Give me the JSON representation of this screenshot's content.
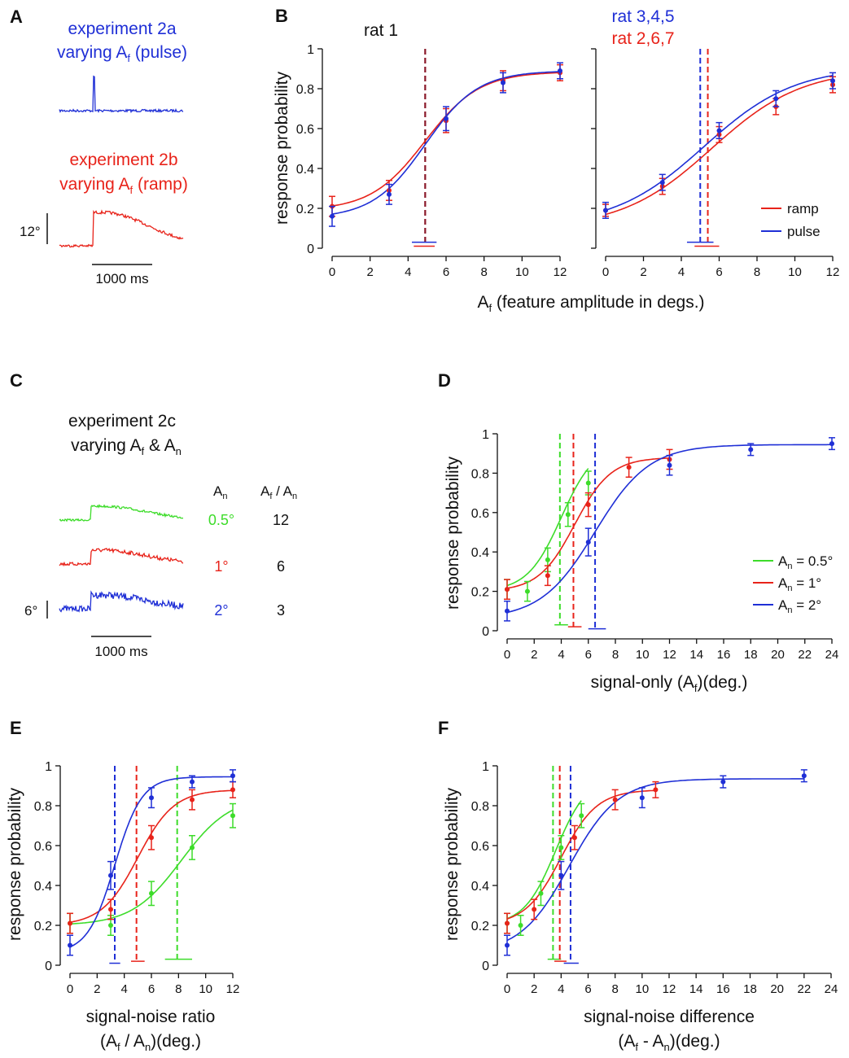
{
  "colors": {
    "blue": "#1f2fd6",
    "red": "#e8231a",
    "green": "#3ddc2a",
    "lightgreen": "#9be88d",
    "darkred": "#8b1a2a",
    "black": "#111111"
  },
  "panels": {
    "A": {
      "letter": "A",
      "pulse_title_1": "experiment 2a",
      "pulse_title_2_pre": "varying A",
      "pulse_title_2_sub": "f",
      "pulse_title_2_post": " (pulse)",
      "ramp_title_1": "experiment 2b",
      "ramp_title_2_pre": "varying A",
      "ramp_title_2_sub": "f",
      "ramp_title_2_post": " (ramp)",
      "scale_angle": "12°",
      "scale_time": "1000 ms"
    },
    "C": {
      "letter": "C",
      "title_1": "experiment 2c",
      "title_2_pre": "varying A",
      "title_2_sub1": "f",
      "title_2_mid": " & A",
      "title_2_sub2": "n",
      "col1_head": "A",
      "col1_head_sub": "n",
      "col2_head_pre": "A",
      "col2_head_sub1": "f",
      "col2_head_mid": " / A",
      "col2_head_sub2": "n",
      "rows": [
        {
          "an": "0.5°",
          "ratio": "12",
          "color": "#3ddc2a"
        },
        {
          "an": "1°",
          "ratio": "6",
          "color": "#e8231a"
        },
        {
          "an": "2°",
          "ratio": "3",
          "color": "#1f2fd6"
        }
      ],
      "scale_angle": "6°",
      "scale_time": "1000 ms"
    }
  },
  "chart_data": [
    {
      "id": "B-left",
      "letter": "B",
      "type": "line",
      "title": "rat 1",
      "ylabel": "response probability",
      "xlabel": "A",
      "xlabel_sub": "f",
      "xlabel_post": " (feature amplitude in degs.)",
      "xlim": [
        0,
        12
      ],
      "ylim": [
        0,
        1
      ],
      "xticks": [
        0,
        2,
        4,
        6,
        8,
        10,
        12
      ],
      "yticks": [
        0,
        0.2,
        0.4,
        0.6,
        0.8,
        1
      ],
      "ytick_labels": [
        "0",
        "0.2",
        "0.4",
        "0.6",
        "0.8",
        "1"
      ],
      "series": [
        {
          "name": "ramp",
          "color": "#e8231a",
          "x": [
            0,
            3,
            6,
            9,
            12
          ],
          "y": [
            0.21,
            0.29,
            0.64,
            0.84,
            0.88
          ],
          "err": [
            0.05,
            0.05,
            0.06,
            0.05,
            0.04
          ],
          "fit": {
            "x0": 4.9,
            "k": 0.7,
            "ymin": 0.19,
            "ymax": 0.885
          },
          "threshold": 4.9,
          "ci": [
            4.3,
            5.4
          ],
          "ci_y": 0.01
        },
        {
          "name": "pulse",
          "color": "#1f2fd6",
          "x": [
            0,
            3,
            6,
            9,
            12
          ],
          "y": [
            0.16,
            0.27,
            0.65,
            0.83,
            0.89
          ],
          "err": [
            0.05,
            0.05,
            0.06,
            0.05,
            0.04
          ],
          "fit": {
            "x0": 4.9,
            "k": 0.72,
            "ymin": 0.15,
            "ymax": 0.89
          },
          "threshold": 4.9,
          "ci": [
            4.2,
            5.5
          ],
          "ci_y": 0.03
        }
      ],
      "threshold_color": "#8b1a2a"
    },
    {
      "id": "B-right",
      "letter": "",
      "type": "line",
      "title_blue": "rat 3,4,5",
      "title_red": "rat 2,6,7",
      "xlim": [
        0,
        12
      ],
      "ylim": [
        0,
        1
      ],
      "xticks": [
        0,
        2,
        4,
        6,
        8,
        10,
        12
      ],
      "legend": [
        {
          "name": "ramp",
          "color": "#e8231a"
        },
        {
          "name": "pulse",
          "color": "#1f2fd6"
        }
      ],
      "legend_loc": "lower-right",
      "series": [
        {
          "name": "ramp",
          "color": "#e8231a",
          "x": [
            0,
            3,
            6,
            9,
            12
          ],
          "y": [
            0.19,
            0.31,
            0.57,
            0.71,
            0.82
          ],
          "err": [
            0.03,
            0.04,
            0.04,
            0.04,
            0.04
          ],
          "fit": {
            "x0": 5.6,
            "k": 0.42,
            "ymin": 0.1,
            "ymax": 0.9
          },
          "threshold": 5.4,
          "ci": [
            4.7,
            6.0
          ],
          "ci_y": 0.01
        },
        {
          "name": "pulse",
          "color": "#1f2fd6",
          "x": [
            0,
            3,
            6,
            9,
            12
          ],
          "y": [
            0.19,
            0.33,
            0.59,
            0.75,
            0.84
          ],
          "err": [
            0.04,
            0.04,
            0.04,
            0.04,
            0.04
          ],
          "fit": {
            "x0": 5.2,
            "k": 0.42,
            "ymin": 0.11,
            "ymax": 0.91
          },
          "threshold": 5.0,
          "ci": [
            4.3,
            5.7
          ],
          "ci_y": 0.03
        }
      ]
    },
    {
      "id": "D",
      "letter": "D",
      "type": "line",
      "ylabel": "response probability",
      "xlabel_pre": "signal-only (A",
      "xlabel_sub": "f",
      "xlabel_post": ")(deg.)",
      "xlim": [
        0,
        24
      ],
      "ylim": [
        0,
        1
      ],
      "xticks": [
        0,
        2,
        4,
        6,
        8,
        10,
        12,
        14,
        16,
        18,
        20,
        22,
        24
      ],
      "yticks": [
        0,
        0.2,
        0.4,
        0.6,
        0.8,
        1
      ],
      "ytick_labels": [
        "0",
        "0.2",
        "0.4",
        "0.6",
        "0.8",
        "1"
      ],
      "legend": [
        {
          "pre": "A",
          "sub": "n",
          "post": " = 0.5°",
          "color": "#3ddc2a"
        },
        {
          "pre": "A",
          "sub": "n",
          "post": " = 1°",
          "color": "#e8231a"
        },
        {
          "pre": "A",
          "sub": "n",
          "post": " = 2°",
          "color": "#1f2fd6"
        }
      ],
      "series": [
        {
          "name": "An = 0.5°",
          "color": "#3ddc2a",
          "x": [
            0,
            1.5,
            3,
            4.5,
            6
          ],
          "y": [
            0.21,
            0.2,
            0.36,
            0.59,
            0.75
          ],
          "err": [
            0.05,
            0.05,
            0.06,
            0.06,
            0.06
          ],
          "fit": {
            "x0": 4.0,
            "k": 0.8,
            "ymin": 0.2,
            "ymax": 0.95
          },
          "fit_range": [
            0,
            6
          ],
          "threshold": 3.9,
          "ci": [
            3.5,
            4.5
          ],
          "ci_y": 0.03
        },
        {
          "name": "An = 1°",
          "color": "#e8231a",
          "x": [
            0,
            3,
            6,
            9,
            12
          ],
          "y": [
            0.21,
            0.28,
            0.64,
            0.83,
            0.87
          ],
          "err": [
            0.05,
            0.05,
            0.06,
            0.05,
            0.05
          ],
          "fit": {
            "x0": 5.0,
            "k": 0.75,
            "ymin": 0.2,
            "ymax": 0.88
          },
          "fit_range": [
            0,
            12
          ],
          "threshold": 4.9,
          "ci": [
            4.5,
            5.5
          ],
          "ci_y": 0.02
        },
        {
          "name": "An = 2°",
          "color": "#1f2fd6",
          "x": [
            0,
            6,
            12,
            18,
            24
          ],
          "y": [
            0.1,
            0.45,
            0.84,
            0.92,
            0.95
          ],
          "err": [
            0.05,
            0.07,
            0.05,
            0.03,
            0.03
          ],
          "fit": {
            "x0": 6.5,
            "k": 0.5,
            "ymin": 0.06,
            "ymax": 0.945
          },
          "fit_range": [
            0,
            24
          ],
          "threshold": 6.5,
          "ci": [
            6.0,
            7.3
          ],
          "ci_y": 0.01
        }
      ]
    },
    {
      "id": "E",
      "letter": "E",
      "type": "line",
      "ylabel": "response probability",
      "xlabel_line1": "signal-noise ratio",
      "xlabel_line2_pre": "(A",
      "xlabel_line2_sub1": "f",
      "xlabel_line2_mid": " / A",
      "xlabel_line2_sub2": "n",
      "xlabel_line2_post": ")(deg.)",
      "xlim": [
        0,
        12
      ],
      "ylim": [
        0,
        1
      ],
      "xticks": [
        0,
        2,
        4,
        6,
        8,
        10,
        12
      ],
      "yticks": [
        0,
        0.2,
        0.4,
        0.6,
        0.8,
        1
      ],
      "ytick_labels": [
        "0",
        "0.2",
        "0.4",
        "0.6",
        "0.8",
        "1"
      ],
      "series": [
        {
          "name": "green",
          "color": "#3ddc2a",
          "x": [
            0,
            3,
            6,
            9,
            12
          ],
          "y": [
            0.21,
            0.2,
            0.36,
            0.59,
            0.75
          ],
          "err": [
            0.05,
            0.05,
            0.06,
            0.06,
            0.06
          ],
          "fit": {
            "x0": 8.2,
            "k": 0.55,
            "ymin": 0.2,
            "ymax": 0.85
          },
          "threshold": 7.9,
          "ci": [
            7.0,
            9.0
          ],
          "ci_y": 0.03
        },
        {
          "name": "red",
          "color": "#e8231a",
          "x": [
            0,
            3,
            6,
            9,
            12
          ],
          "y": [
            0.21,
            0.28,
            0.64,
            0.83,
            0.88
          ],
          "err": [
            0.05,
            0.05,
            0.06,
            0.05,
            0.04
          ],
          "fit": {
            "x0": 5.0,
            "k": 0.75,
            "ymin": 0.2,
            "ymax": 0.88
          },
          "threshold": 4.9,
          "ci": [
            4.5,
            5.5
          ],
          "ci_y": 0.02
        },
        {
          "name": "blue",
          "color": "#1f2fd6",
          "x": [
            0,
            3,
            6,
            9,
            12
          ],
          "y": [
            0.1,
            0.45,
            0.84,
            0.92,
            0.95
          ],
          "err": [
            0.05,
            0.07,
            0.05,
            0.03,
            0.03
          ],
          "fit": {
            "x0": 3.3,
            "k": 1.0,
            "ymin": 0.06,
            "ymax": 0.945
          },
          "threshold": 3.3,
          "ci": [
            2.9,
            3.7
          ],
          "ci_y": 0.01
        }
      ]
    },
    {
      "id": "F",
      "letter": "F",
      "type": "line",
      "ylabel": "response probability",
      "xlabel_line1": "signal-noise difference",
      "xlabel_line2_pre": "(A",
      "xlabel_line2_sub1": "f",
      "xlabel_line2_mid": " - A",
      "xlabel_line2_sub2": "n",
      "xlabel_line2_post": ")(deg.)",
      "xlim": [
        0,
        24
      ],
      "ylim": [
        0,
        1
      ],
      "xticks": [
        0,
        2,
        4,
        6,
        8,
        10,
        12,
        14,
        16,
        18,
        20,
        22,
        24
      ],
      "yticks": [
        0,
        0.2,
        0.4,
        0.6,
        0.8,
        1
      ],
      "ytick_labels": [
        "0",
        "0.2",
        "0.4",
        "0.6",
        "0.8",
        "1"
      ],
      "series": [
        {
          "name": "green",
          "color": "#3ddc2a",
          "x": [
            0,
            1,
            2.5,
            4,
            5.5
          ],
          "y": [
            0.21,
            0.2,
            0.36,
            0.59,
            0.75
          ],
          "err": [
            0.05,
            0.05,
            0.06,
            0.06,
            0.06
          ],
          "fit": {
            "x0": 3.6,
            "k": 0.85,
            "ymin": 0.2,
            "ymax": 0.95
          },
          "fit_range": [
            0,
            5.5
          ],
          "threshold": 3.4,
          "ci": [
            3.0,
            4.0
          ],
          "ci_y": 0.03
        },
        {
          "name": "red",
          "color": "#e8231a",
          "x": [
            0,
            2,
            5,
            8,
            11
          ],
          "y": [
            0.21,
            0.28,
            0.64,
            0.83,
            0.88
          ],
          "err": [
            0.05,
            0.05,
            0.06,
            0.05,
            0.04
          ],
          "fit": {
            "x0": 4.0,
            "k": 0.75,
            "ymin": 0.2,
            "ymax": 0.88
          },
          "fit_range": [
            0,
            11
          ],
          "threshold": 3.9,
          "ci": [
            3.5,
            4.4
          ],
          "ci_y": 0.02
        },
        {
          "name": "blue",
          "color": "#1f2fd6",
          "x": [
            0,
            4,
            10,
            16,
            22
          ],
          "y": [
            0.1,
            0.45,
            0.84,
            0.92,
            0.95
          ],
          "err": [
            0.05,
            0.07,
            0.05,
            0.03,
            0.03
          ],
          "fit": {
            "x0": 4.6,
            "k": 0.55,
            "ymin": 0.06,
            "ymax": 0.935
          },
          "fit_range": [
            0,
            22
          ],
          "threshold": 4.7,
          "ci": [
            4.2,
            5.3
          ],
          "ci_y": 0.01
        }
      ]
    }
  ]
}
